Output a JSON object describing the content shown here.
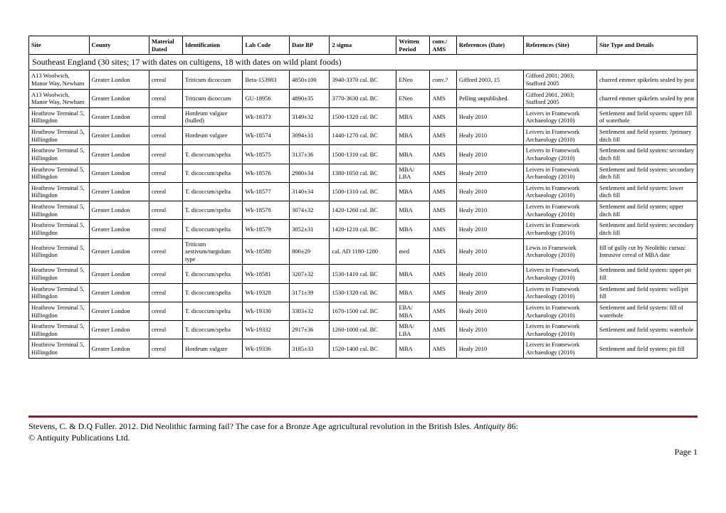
{
  "columns": [
    {
      "label": "Site",
      "width": "9%"
    },
    {
      "label": "County",
      "width": "9%"
    },
    {
      "label": "Material Dated",
      "width": "5%"
    },
    {
      "label": "Identification",
      "width": "9%"
    },
    {
      "label": "Lab Code",
      "width": "7%"
    },
    {
      "label": "Date BP",
      "width": "6%"
    },
    {
      "label": "2 sigma",
      "width": "10%"
    },
    {
      "label": "Written Period",
      "width": "5%"
    },
    {
      "label": "conv./ AMS",
      "width": "4%"
    },
    {
      "label": "References (Date)",
      "width": "10%"
    },
    {
      "label": "References (Site)",
      "width": "11%"
    },
    {
      "label": "Site Type and Details",
      "width": "15%"
    }
  ],
  "section_title": "Southeast England (30 sites; 17 with dates on cultigens, 18 with dates on wild plant foods)",
  "rows": [
    [
      "A13 Woolwich, Manor Way, Newham",
      "Greater London",
      "cereal",
      "Triticum dicoccum",
      "Beta-153983",
      "4850±100",
      "3940-3370 cal. BC",
      "ENeo",
      "conv.?",
      "Gifford 2003, 15",
      "Gifford 2001; 2003; Stafford 2005",
      "charred emmer spikelets sealed by peat"
    ],
    [
      "A13 Woolwich, Manor Way, Newham",
      "Greater London",
      "cereal",
      "Triticum dicoccum",
      "GU-18956",
      "4890±35",
      "3770-3630 cal. BC",
      "ENeo",
      "AMS",
      "Pelling unpublished.",
      "Gifford 2001, 2003; Stafford 2005",
      "charred emmer spikelets sealed by peat"
    ],
    [
      "Heathrow Terminal 5, Hillingdon",
      "Greater London",
      "cereal",
      "Hordeum vulgare (hulled)",
      "Wk-18373",
      "3149±32",
      "1500-1320 cal. BC",
      "MBA",
      "AMS",
      "Healy 2010",
      "Leivers in Framework Archaeology (2010)",
      "Settlement and field system: upper fill of waterhole"
    ],
    [
      "Heathrow Terminal 5, Hillingdon",
      "Greater London",
      "cereal",
      "Hordeum vulgare",
      "Wk-18574",
      "3094±31",
      "1440-1270 cal. BC",
      "MBA",
      "AMS",
      "Healy 2010",
      "Leivers in Framework Archaeology (2010)",
      "Settlement and field system: ?primary ditch fill"
    ],
    [
      "Heathrow Terminal 5, Hillingdon",
      "Greater London",
      "cereal",
      "T. dicoccum/spelta",
      "Wk-18575",
      "3137±36",
      "1500-1310 cal. BC",
      "MBA",
      "AMS",
      "Healy 2010",
      "Leivers in Framework Archaeology (2010)",
      "Settlement and field system: secondary ditch fill"
    ],
    [
      "Heathrow Terminal 5, Hillingdon",
      "Greater London",
      "cereal",
      "T. dicoccum/spelta",
      "Wk-18576",
      "2980±34",
      "1380-1050 cal. BC",
      "MBA/ LBA",
      "AMS",
      "Healy 2010",
      "Leivers in Framework Archaeology (2010)",
      "Settlement and field system: secondary ditch fill"
    ],
    [
      "Heathrow Terminal 5, Hillingdon",
      "Greater London",
      "cereal",
      "T. dicoccum/spelta",
      "Wk-18577",
      "3140±34",
      "1500-1310 cal. BC",
      "MBA",
      "AMS",
      "Healy 2010",
      "Leivers in Framework Archaeology (2010)",
      "Settlement and field system: lower ditch fill"
    ],
    [
      "Heathrow Terminal 5, Hillingdon",
      "Greater London",
      "cereal",
      "T. dicoccum/spelta",
      "Wk-18578",
      "3074±32",
      "1420-1260 cal. BC",
      "MBA",
      "AMS",
      "Healy 2010",
      "Leivers in Framework Archaeology (2010)",
      "Settlement and field system: upper ditch fill"
    ],
    [
      "Heathrow Terminal 5, Hillingdon",
      "Greater London",
      "cereal",
      "T. dicoccum/spelta",
      "Wk-18579",
      "3052±31",
      "1420-1210 cal. BC",
      "MBA",
      "AMS",
      "Healy 2010",
      "Leivers in Framework Archaeology (2010)",
      "Settlement and field system: secondary ditch fill"
    ],
    [
      "Heathrow Terminal 5, Hillingdon",
      "Greater London",
      "cereal",
      "Triticum aestivum/turgidum type",
      "Wk-18580",
      "800±29",
      "cal. AD 1180-1280",
      "med",
      "AMS",
      "Healy 2010",
      "Lewis in Framework Archaeology (2010)",
      "fill of gully cut by Neolithic cursus: Intrusive cereal of MBA date"
    ],
    [
      "Heathrow Terminal 5, Hillingdon",
      "Greater London",
      "cereal",
      "T. dicoccum/spelta",
      "Wk-18581",
      "3207±32",
      "1530-1410 cal. BC",
      "MBA",
      "AMS",
      "Healy 2010",
      "Leivers in Framework Archaeology (2010)",
      "Settlement and field system: upper pit fill"
    ],
    [
      "Heathrow Terminal 5, Hillingdon",
      "Greater London",
      "cereal",
      "T. dicoccum/spelta",
      "Wk-19328",
      "3171±39",
      "1530-1320 cal. BC",
      "MBA",
      "AMS",
      "Healy 2010",
      "Leivers in Framework Archaeology (2010)",
      "Settlement and field system: well/pit fill"
    ],
    [
      "Heathrow Terminal 5, Hillingdon",
      "Greater London",
      "cereal",
      "T. dicoccum/spelta",
      "Wk-19330",
      "3303±32",
      "1670-1500 cal. BC",
      "EBA/ MBA",
      "AMS",
      "Healy 2010",
      "Leivers in Framework Archaeology (2010)",
      "Settlement and field system: fill of waterhole"
    ],
    [
      "Heathrow Terminal 5, Hillingdon",
      "Greater London",
      "cereal",
      "T. dicoccum/spelta",
      "Wk-19332",
      "2917±36",
      "1260-1000 cal. BC",
      "MBA/ LBA",
      "AMS",
      "Healy 2010",
      "Leivers in Framework Archaeology (2010)",
      "Settlement and field system: waterhole"
    ],
    [
      "Heathrow Terminal 5, Hillingdon",
      "Greater London",
      "cereal",
      "Hordeum vulgare",
      "Wk-19336",
      "3185±33",
      "1520-1400 cal. BC",
      "MBA",
      "AMS",
      "Healy 2010",
      "Leivers in Framework Archaeology (2010)",
      "Settlement and field system: pit fill"
    ]
  ],
  "footer": {
    "citation_plain": "Stevens, C. & D.Q Fuller. 2012. Did Neolithic farming fail? The case for a Bronze Age agricultural revolution in the British Isles. ",
    "citation_italic": "Antiquity",
    "citation_tail": " 86:",
    "copyright": "© Antiquity Publications Ltd.",
    "page": "Page 1"
  }
}
